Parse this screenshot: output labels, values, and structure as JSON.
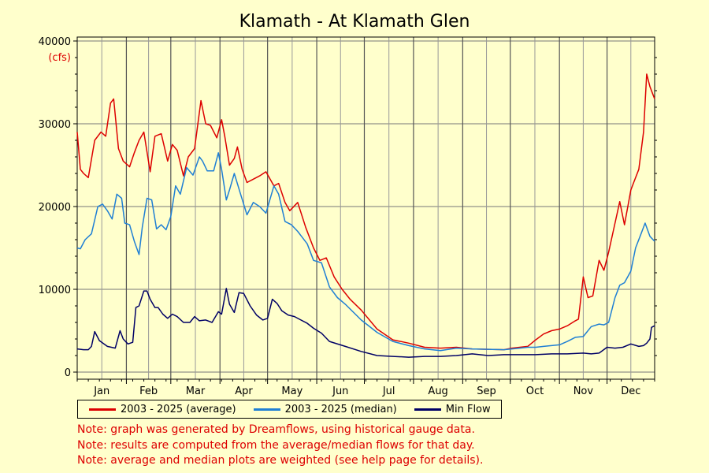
{
  "chart_data": {
    "type": "line",
    "title": "Klamath - At Klamath Glen",
    "y_unit": "(cfs)",
    "ylim": [
      0,
      40000
    ],
    "y_ticks": [
      0,
      10000,
      20000,
      30000,
      40000
    ],
    "x_months": [
      "Jan",
      "Feb",
      "Mar",
      "Apr",
      "May",
      "Jun",
      "Jul",
      "Aug",
      "Sep",
      "Oct",
      "Nov",
      "Dec"
    ],
    "xlim": [
      1,
      365
    ],
    "grid": true,
    "legend_placement": "bottom",
    "series": [
      {
        "name": "2003 - 2025 (average)",
        "color": "#dd0000",
        "x": [
          1,
          3,
          5,
          8,
          12,
          16,
          19,
          22,
          24,
          27,
          30,
          34,
          37,
          40,
          43,
          47,
          50,
          54,
          58,
          61,
          64,
          68,
          71,
          75,
          79,
          82,
          85,
          89,
          92,
          94,
          97,
          100,
          102,
          105,
          108,
          112,
          116,
          120,
          125,
          128,
          132,
          135,
          140,
          145,
          150,
          154,
          158,
          163,
          168,
          173,
          180,
          190,
          200,
          210,
          220,
          230,
          240,
          250,
          260,
          270,
          275,
          280,
          285,
          290,
          295,
          300,
          305,
          310,
          315,
          317,
          320,
          323,
          326,
          330,
          333,
          336,
          340,
          343,
          346,
          350,
          352,
          355,
          358,
          360,
          362,
          364,
          365
        ],
        "y": [
          29000,
          24500,
          24000,
          23500,
          28000,
          29000,
          28500,
          32500,
          33000,
          27000,
          25500,
          24800,
          26500,
          28000,
          29000,
          24200,
          28500,
          28800,
          25500,
          27500,
          26800,
          23700,
          26000,
          27000,
          32800,
          30000,
          29800,
          28300,
          30500,
          28500,
          25000,
          25800,
          27200,
          24500,
          22900,
          23300,
          23700,
          24200,
          22500,
          22800,
          20500,
          19500,
          20500,
          17500,
          15000,
          13500,
          13800,
          11500,
          10000,
          8800,
          7500,
          5200,
          3900,
          3500,
          3000,
          2900,
          3000,
          2800,
          2750,
          2700,
          2900,
          3000,
          3100,
          3900,
          4600,
          5000,
          5200,
          5600,
          6200,
          6400,
          11500,
          9000,
          9200,
          13500,
          12300,
          14500,
          18000,
          20600,
          17800,
          22000,
          23000,
          24500,
          29000,
          36000,
          34500,
          33500,
          33000
        ]
      },
      {
        "name": "2003 - 2025 (median)",
        "color": "#1f7fd4",
        "x": [
          1,
          3,
          6,
          10,
          14,
          17,
          20,
          23,
          26,
          29,
          31,
          34,
          37,
          40,
          42,
          45,
          48,
          51,
          54,
          57,
          60,
          63,
          66,
          70,
          74,
          78,
          80,
          83,
          87,
          90,
          92,
          95,
          97,
          100,
          104,
          108,
          112,
          116,
          120,
          125,
          128,
          132,
          136,
          140,
          146,
          150,
          155,
          160,
          165,
          170,
          180,
          190,
          200,
          210,
          220,
          230,
          240,
          250,
          260,
          270,
          275,
          280,
          285,
          290,
          295,
          300,
          305,
          310,
          315,
          320,
          325,
          330,
          333,
          336,
          340,
          343,
          346,
          350,
          353,
          356,
          359,
          362,
          365
        ],
        "y": [
          15000,
          14900,
          16000,
          16700,
          20000,
          20300,
          19500,
          18500,
          21500,
          21000,
          18000,
          17800,
          15800,
          14200,
          17500,
          21000,
          20800,
          17300,
          17800,
          17200,
          18800,
          22500,
          21500,
          24700,
          23800,
          26000,
          25500,
          24300,
          24300,
          26500,
          24500,
          20800,
          22000,
          24000,
          21500,
          19000,
          20500,
          20000,
          19200,
          22500,
          21500,
          18200,
          17800,
          17000,
          15500,
          13500,
          13200,
          10300,
          9000,
          8200,
          6300,
          4800,
          3700,
          3200,
          2800,
          2600,
          2900,
          2800,
          2750,
          2700,
          2800,
          2900,
          3000,
          3000,
          3100,
          3200,
          3300,
          3700,
          4200,
          4300,
          5500,
          5800,
          5700,
          6000,
          9000,
          10500,
          10800,
          12200,
          15000,
          16500,
          18000,
          16400,
          15800
        ]
      },
      {
        "name": "Min Flow",
        "color": "#000066",
        "x": [
          1,
          5,
          8,
          10,
          12,
          15,
          20,
          25,
          28,
          30,
          33,
          36,
          38,
          40,
          43,
          45,
          47,
          50,
          52,
          55,
          58,
          61,
          64,
          68,
          72,
          75,
          78,
          82,
          86,
          90,
          92,
          95,
          97,
          100,
          103,
          106,
          110,
          114,
          118,
          121,
          124,
          127,
          130,
          134,
          138,
          142,
          146,
          150,
          155,
          160,
          170,
          180,
          190,
          200,
          210,
          220,
          230,
          240,
          250,
          260,
          270,
          280,
          290,
          300,
          310,
          320,
          325,
          330,
          335,
          340,
          345,
          350,
          355,
          358,
          360,
          362,
          363,
          365
        ],
        "y": [
          2800,
          2700,
          2700,
          3100,
          4900,
          3800,
          3100,
          2900,
          5000,
          4000,
          3400,
          3600,
          7800,
          8000,
          9800,
          9800,
          8800,
          7800,
          7800,
          7000,
          6500,
          7000,
          6700,
          6000,
          6000,
          6700,
          6200,
          6300,
          6000,
          7300,
          7000,
          10100,
          8200,
          7200,
          9600,
          9500,
          8000,
          6900,
          6300,
          6500,
          8800,
          8300,
          7400,
          6900,
          6700,
          6300,
          5900,
          5300,
          4700,
          3700,
          3100,
          2500,
          2000,
          1900,
          1800,
          1900,
          1900,
          2000,
          2200,
          2000,
          2100,
          2100,
          2100,
          2200,
          2200,
          2300,
          2200,
          2300,
          3000,
          2900,
          3000,
          3400,
          3100,
          3200,
          3500,
          4000,
          5400,
          5600
        ]
      }
    ],
    "notes": [
      "Note: graph was generated by Dreamflows, using historical gauge data.",
      "Note: results are computed from the average/median flows for that day.",
      "Note: average and median plots are weighted (see help page for details)."
    ]
  }
}
